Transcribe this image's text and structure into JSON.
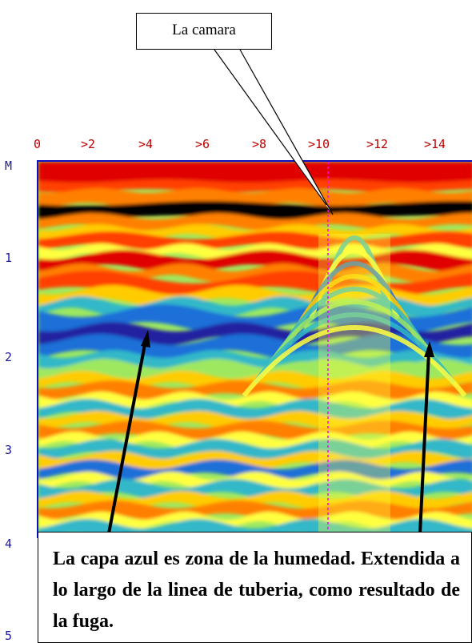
{
  "axes": {
    "x_unit": "",
    "x_ticks": [
      "0",
      ">2",
      ">4",
      ">6",
      ">8",
      ">10",
      ">12",
      ">14"
    ],
    "y_unit": "M",
    "y_ticks": [
      "1",
      "2",
      "3",
      "4",
      "5"
    ]
  },
  "callout": {
    "text": "La camara"
  },
  "caption": {
    "text": "La capa  azul es zona de la humedad. Extendida a lo largo de la linea de tuberia, como resultado de la fuga."
  },
  "colors": {
    "axis_x": "#c00000",
    "axis_y": "#1a1aa0",
    "marker_line": "#ff00ff",
    "palette": [
      "#e00000",
      "#ff4000",
      "#ff8000",
      "#ffcc00",
      "#ffff40",
      "#9ee860",
      "#30b8c8",
      "#1e70d8",
      "#2020a0",
      "#000000"
    ]
  }
}
